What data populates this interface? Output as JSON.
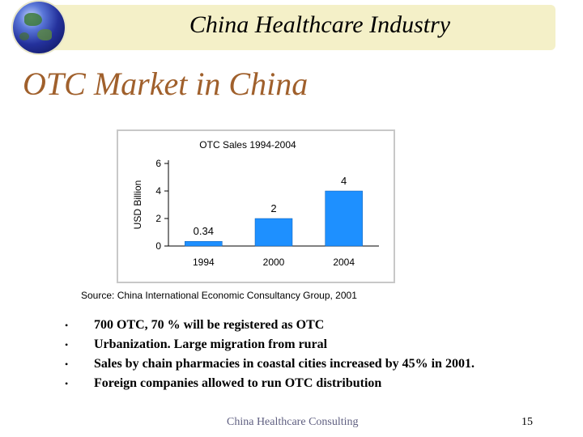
{
  "header": {
    "title": "China Healthcare Industry"
  },
  "slide": {
    "title": "OTC Market in China"
  },
  "chart_data": {
    "type": "bar",
    "title": "OTC Sales 1994-2004",
    "categories": [
      "1994",
      "2000",
      "2004"
    ],
    "values": [
      0.34,
      2,
      4
    ],
    "value_labels": [
      "0.34",
      "2",
      "4"
    ],
    "xlabel": "",
    "ylabel": "USD Billion",
    "ylim": [
      0,
      6
    ],
    "yticks": [
      "0",
      "2",
      "4",
      "6"
    ],
    "bar_color": "#1e90ff"
  },
  "source": "Source: China International Economic Consultancy Group, 2001",
  "bullets": [
    "700 OTC, 70 % will be registered as OTC",
    "Urbanization. Large migration from rural",
    "Sales by chain pharmacies in coastal cities increased by 45% in 2001.",
    "Foreign companies allowed to run OTC distribution"
  ],
  "footer": {
    "company": "China Healthcare Consulting",
    "page": "15"
  },
  "colors": {
    "header_bg": "#f4f0c8",
    "title_color": "#a0602c",
    "footer_color": "#5f5f80"
  }
}
